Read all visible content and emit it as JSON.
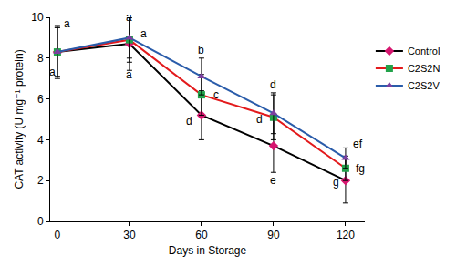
{
  "chart_data": {
    "type": "line",
    "x_label": "Days in Storage",
    "y_label": "CAT activity (U mg⁻¹ protein)",
    "x": [
      0,
      30,
      60,
      90,
      120
    ],
    "series": [
      {
        "name": "Control",
        "color": "#000000",
        "marker": "diamond",
        "values": [
          8.3,
          8.7,
          5.2,
          3.7,
          2.0
        ],
        "errors": [
          1.3,
          1.3,
          1.2,
          1.3,
          1.1
        ]
      },
      {
        "name": "C2S2N",
        "color": "#e31a1c",
        "marker": "square",
        "values": [
          8.3,
          8.9,
          6.2,
          5.1,
          2.6
        ],
        "errors": [
          1.2,
          1.1,
          1.0,
          1.1,
          0.6
        ]
      },
      {
        "name": "C2S2V",
        "color": "#2a5caa",
        "marker": "triangle-up",
        "values": [
          8.3,
          9.0,
          7.1,
          5.3,
          3.1
        ],
        "errors": [
          1.2,
          1.0,
          0.9,
          1.0,
          0.5
        ]
      }
    ],
    "xlim": [
      -3,
      128
    ],
    "xticks": [
      0,
      30,
      60,
      90,
      120
    ],
    "ylim": [
      0,
      10
    ],
    "yticks": [
      0,
      2,
      4,
      6,
      8,
      10
    ],
    "grid": false,
    "legend": "right",
    "annotations": [
      {
        "text": "a",
        "x": 4,
        "y": 9.7
      },
      {
        "text": "a",
        "x": -2,
        "y": 7.3
      },
      {
        "text": "a",
        "x": 30,
        "y": 10.0
      },
      {
        "text": "a",
        "x": 36,
        "y": 9.2
      },
      {
        "text": "a",
        "x": 30,
        "y": 7.2
      },
      {
        "text": "b",
        "x": 60,
        "y": 8.4
      },
      {
        "text": "c",
        "x": 66,
        "y": 6.2
      },
      {
        "text": "d",
        "x": 55,
        "y": 4.9
      },
      {
        "text": "d",
        "x": 90,
        "y": 6.7
      },
      {
        "text": "d",
        "x": 84,
        "y": 5.0
      },
      {
        "text": "e",
        "x": 90,
        "y": 2.0
      },
      {
        "text": "ef",
        "x": 125,
        "y": 3.8
      },
      {
        "text": "fg",
        "x": 126,
        "y": 2.6
      },
      {
        "text": "g",
        "x": 116,
        "y": 1.9
      }
    ]
  }
}
